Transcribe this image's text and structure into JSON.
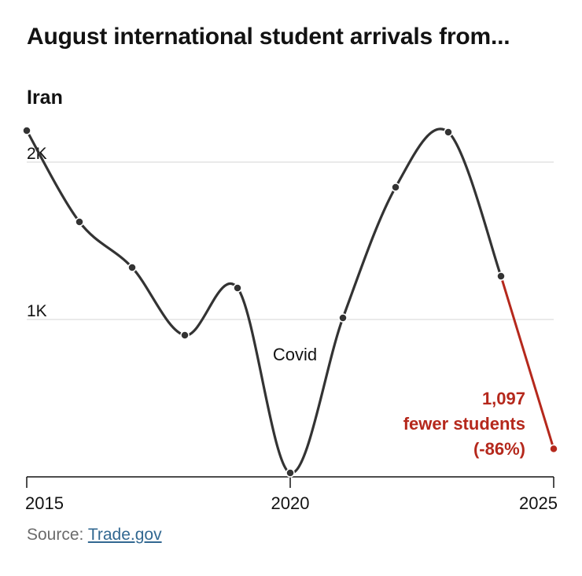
{
  "header": {
    "title": "August international student arrivals from...",
    "subtitle": "Iran"
  },
  "source": {
    "label": "Source: ",
    "link_text": "Trade.gov"
  },
  "colors": {
    "line": "#333333",
    "highlight": "#b5281c",
    "grid": "#dddddd",
    "text": "#121212"
  },
  "chart_data": {
    "type": "line",
    "title": "Iran",
    "x": [
      2015,
      2016,
      2017,
      2018,
      2019,
      2020,
      2021,
      2022,
      2023,
      2024,
      2025
    ],
    "series": [
      {
        "values": [
          2200,
          1620,
          1330,
          900,
          1200,
          25,
          1010,
          1840,
          2190,
          1275,
          178
        ]
      }
    ],
    "highlight_segment": {
      "from": 2024,
      "to": 2025
    },
    "ylim": [
      0,
      2200
    ],
    "yticks": [
      {
        "value": 1000,
        "label": "1K"
      },
      {
        "value": 2000,
        "label": "2K"
      }
    ],
    "xticks": [
      {
        "value": 2015,
        "label": "2015"
      },
      {
        "value": 2020,
        "label": "2020"
      },
      {
        "value": 2025,
        "label": "2025"
      }
    ],
    "grid": true,
    "annotations": [
      {
        "x": 2020,
        "text": "Covid"
      }
    ],
    "callout": {
      "lines": [
        "1,097",
        "fewer students",
        "(-86%)"
      ]
    }
  }
}
